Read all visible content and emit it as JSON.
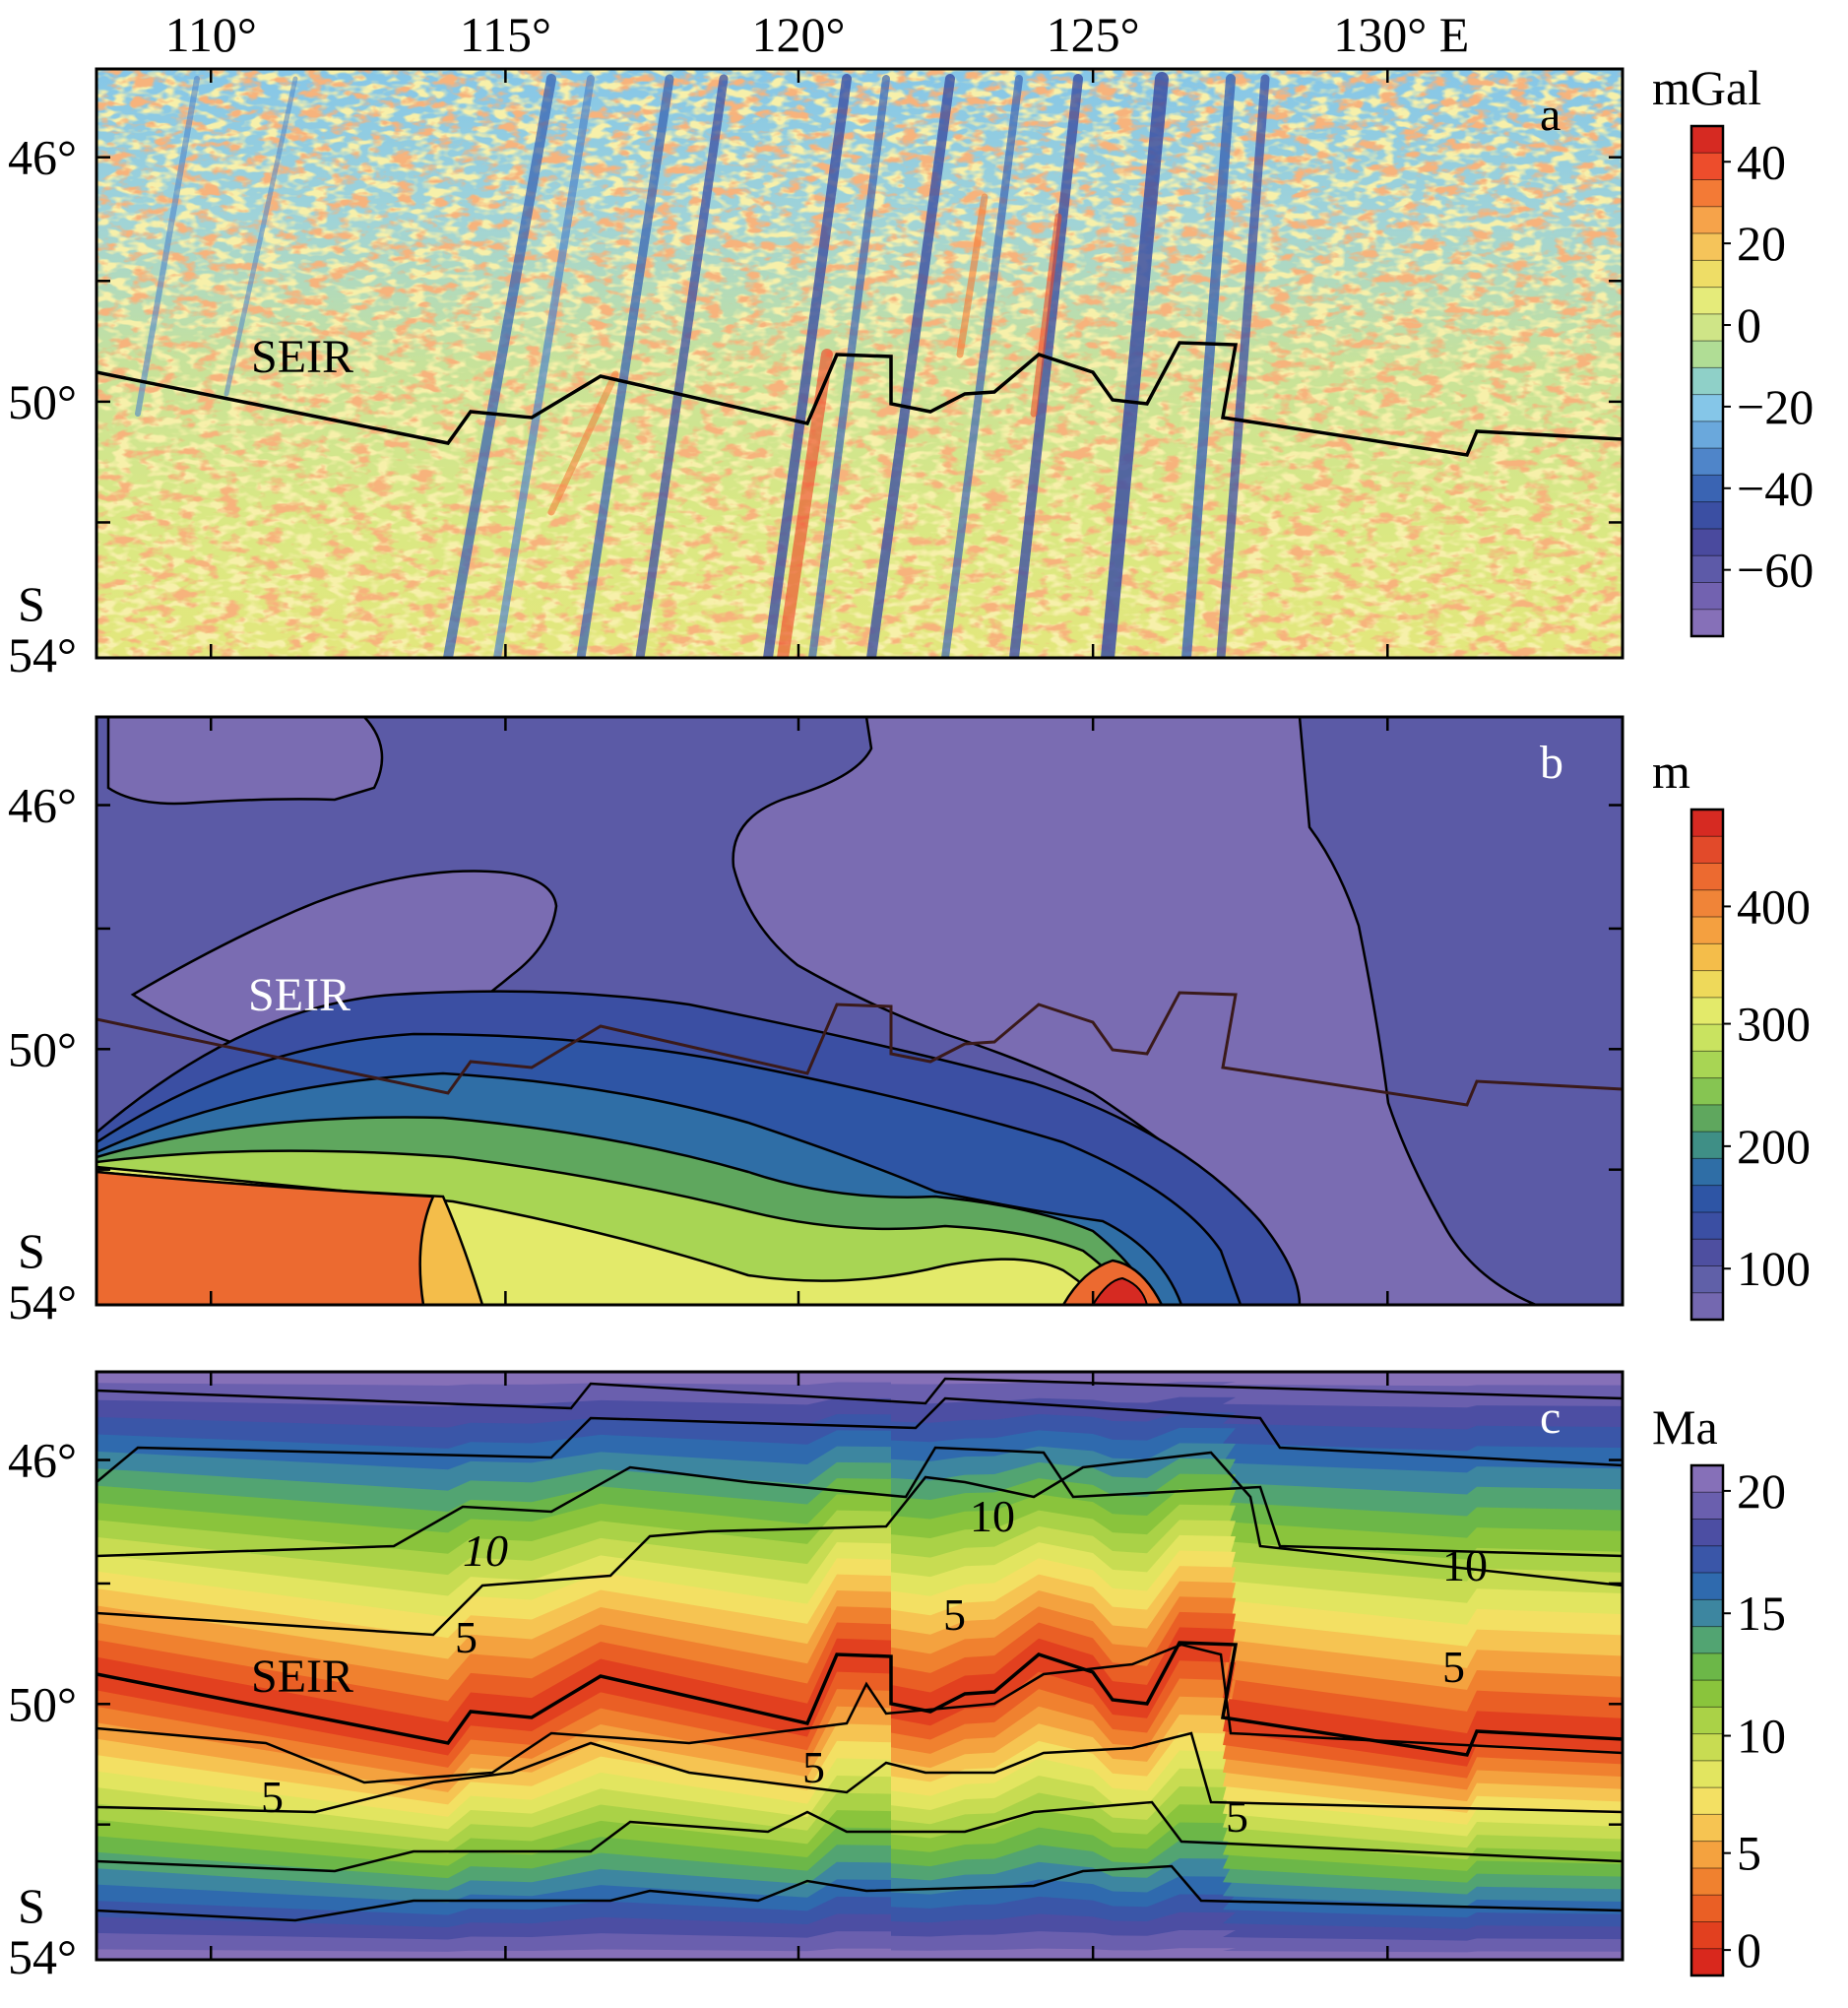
{
  "x_ticks": [
    "110°",
    "115°",
    "120°",
    "125°",
    "130° E"
  ],
  "y_ticks": [
    "46°",
    "50°",
    "S",
    "54°"
  ],
  "panels": [
    {
      "letter": "a",
      "unit": "mGal",
      "ridge_label": "SEIR",
      "colorbar_ticks": [
        "40",
        "20",
        "0",
        "−20",
        "−40",
        "−60"
      ],
      "colors": [
        "#d62a22",
        "#ed4d2c",
        "#f37a36",
        "#f6a34a",
        "#f5c45a",
        "#eedd66",
        "#e5eb7a",
        "#cfe587",
        "#b0dd95",
        "#8fd0c8",
        "#85c6e8",
        "#6aa8dc",
        "#4f85c9",
        "#3a64b3",
        "#3b4fa3",
        "#4a4a9e",
        "#5d5aa8",
        "#7262b0",
        "#8670b8"
      ],
      "contour_labels": []
    },
    {
      "letter": "b",
      "unit": "m",
      "ridge_label": "SEIR",
      "colorbar_ticks": [
        "400",
        "300",
        "200",
        "100"
      ],
      "colors": [
        "#d62a22",
        "#e24a2a",
        "#ec6a30",
        "#f08438",
        "#f4a040",
        "#f4bd4a",
        "#eed95a",
        "#e3ea6a",
        "#c9e360",
        "#a8d554",
        "#86c552",
        "#5fa75e",
        "#3f8f86",
        "#2f6ea6",
        "#2e55a5",
        "#3b4fa3",
        "#4e4fa0",
        "#6060a8",
        "#7468b0"
      ],
      "contour_labels": []
    },
    {
      "letter": "c",
      "unit": "Ma",
      "ridge_label": "SEIR",
      "colorbar_ticks": [
        "20",
        "15",
        "10",
        "5",
        "0"
      ],
      "colors": [
        "#8670b8",
        "#6a5fae",
        "#4c4ea3",
        "#3a56a8",
        "#2f6aae",
        "#3d86a0",
        "#52a472",
        "#6cb748",
        "#8ac43c",
        "#aad247",
        "#c8dc52",
        "#e2e560",
        "#f3e063",
        "#f6c452",
        "#f4a23f",
        "#f0812f",
        "#ea5f25",
        "#e2401f",
        "#d9281d"
      ],
      "contour_labels": [
        "10",
        "10",
        "10",
        "5",
        "5",
        "5",
        "5",
        "5",
        "5"
      ]
    }
  ]
}
